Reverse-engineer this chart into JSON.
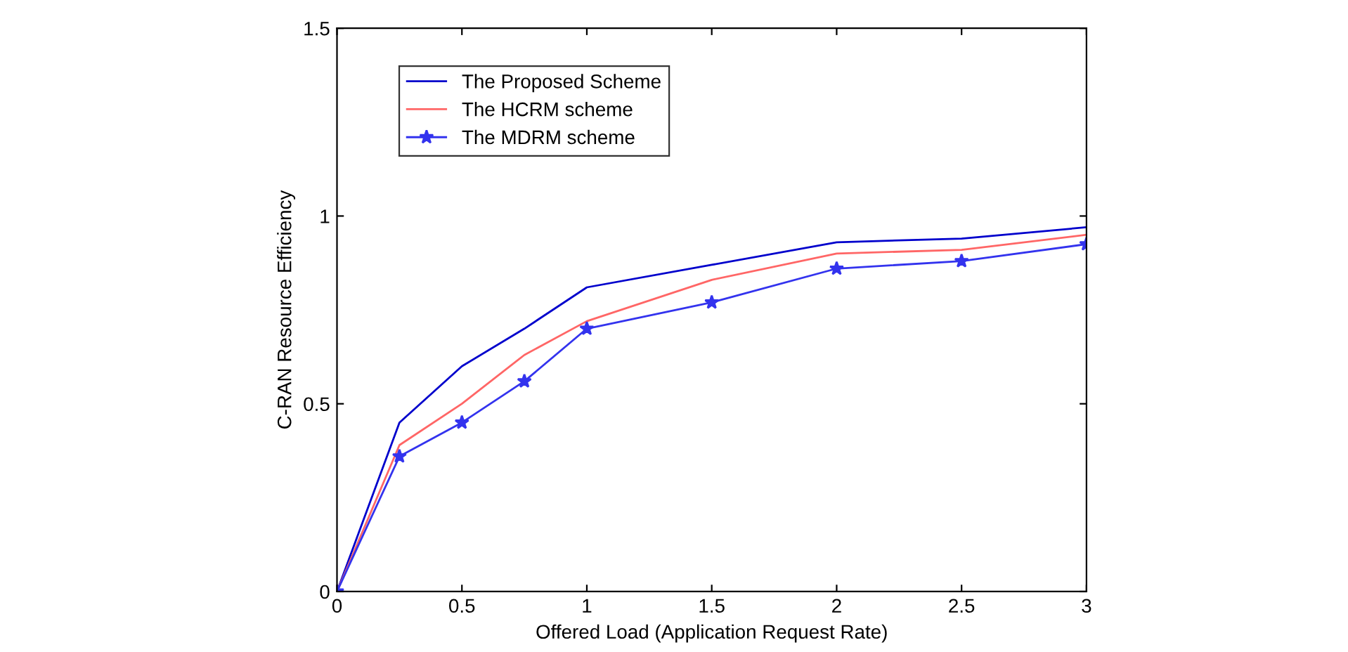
{
  "chart_data": {
    "type": "line",
    "xlabel": "Offered Load (Application Request Rate)",
    "ylabel": "C-RAN Resource Efficiency",
    "x": [
      0,
      0.25,
      0.5,
      0.75,
      1,
      1.5,
      2,
      2.5,
      3
    ],
    "series": [
      {
        "name": "The Proposed Scheme",
        "color": "#0000cc",
        "values": [
          0,
          0.45,
          0.6,
          0.7,
          0.81,
          0.87,
          0.93,
          0.94,
          0.97
        ],
        "marker": "none"
      },
      {
        "name": "The HCRM scheme",
        "color": "#ff6666",
        "values": [
          0,
          0.39,
          0.5,
          0.63,
          0.72,
          0.83,
          0.9,
          0.91,
          0.95
        ],
        "marker": "none"
      },
      {
        "name": "The MDRM scheme",
        "color": "#3333ee",
        "values": [
          0,
          0.36,
          0.45,
          0.56,
          0.7,
          0.77,
          0.86,
          0.88,
          0.925
        ],
        "marker": "star"
      }
    ],
    "xlim": [
      0,
      3
    ],
    "xticks": [
      0,
      0.5,
      1,
      1.5,
      2,
      2.5,
      3
    ],
    "ylim": [
      0,
      1.5
    ],
    "yticks": [
      0,
      0.5,
      1,
      1.5
    ],
    "grid": false,
    "legend": "top left",
    "line_style": "solid"
  }
}
